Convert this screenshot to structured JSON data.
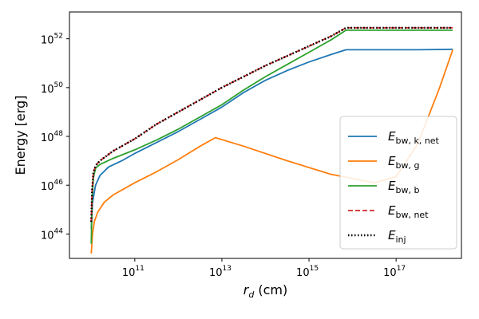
{
  "chart_data": {
    "type": "line",
    "xscale": "log",
    "yscale": "log",
    "xlabel": "r_d (cm)",
    "xlabel_main": "r",
    "xlabel_sub": "d",
    "xlabel_unit": " (cm)",
    "ylabel": "Energy [erg]",
    "xlim_exp": [
      9.5,
      18.5
    ],
    "ylim_exp": [
      43.0,
      53.1
    ],
    "xticks": [
      {
        "value": 11,
        "label_base": "10",
        "label_exp": "11"
      },
      {
        "value": 13,
        "label_base": "10",
        "label_exp": "13"
      },
      {
        "value": 15,
        "label_base": "10",
        "label_exp": "15"
      },
      {
        "value": 17,
        "label_base": "10",
        "label_exp": "17"
      }
    ],
    "yticks": [
      {
        "value": 44,
        "label_base": "10",
        "label_exp": "44"
      },
      {
        "value": 46,
        "label_base": "10",
        "label_exp": "46"
      },
      {
        "value": 48,
        "label_base": "10",
        "label_exp": "48"
      },
      {
        "value": 50,
        "label_base": "10",
        "label_exp": "50"
      },
      {
        "value": 52,
        "label_base": "10",
        "label_exp": "52"
      }
    ],
    "legend_position": "lower-right",
    "series": [
      {
        "name": "E_bw,k,net",
        "label_main": "E",
        "label_sub": "bw, k, net",
        "color": "#1f77b4",
        "style": "solid",
        "log_x": [
          10.0,
          10.03,
          10.1,
          10.2,
          10.4,
          10.7,
          11.0,
          11.5,
          12.0,
          12.5,
          13.0,
          13.5,
          14.0,
          14.5,
          15.0,
          15.5,
          15.85,
          16.5,
          17.5,
          18.3
        ],
        "log_y": [
          44.2,
          45.3,
          46.0,
          46.4,
          46.75,
          47.0,
          47.3,
          47.75,
          48.2,
          48.7,
          49.2,
          49.8,
          50.3,
          50.7,
          51.05,
          51.35,
          51.55,
          51.55,
          51.55,
          51.57
        ]
      },
      {
        "name": "E_bw,g",
        "label_main": "E",
        "label_sub": "bw, g",
        "color": "#ff7f0e",
        "style": "solid",
        "log_x": [
          10.0,
          10.03,
          10.07,
          10.15,
          10.3,
          10.5,
          10.8,
          11.0,
          11.5,
          12.0,
          12.5,
          12.85,
          13.5,
          14.5,
          15.5,
          16.5,
          17.0,
          17.5,
          18.0,
          18.3
        ],
        "log_y": [
          43.2,
          44.0,
          44.5,
          44.9,
          45.3,
          45.6,
          45.9,
          46.1,
          46.55,
          47.05,
          47.6,
          47.95,
          47.6,
          47.0,
          46.45,
          46.1,
          46.35,
          47.7,
          50.0,
          51.55
        ]
      },
      {
        "name": "E_bw,b",
        "label_main": "E",
        "label_sub": "bw, b",
        "color": "#2ca02c",
        "style": "solid",
        "log_x": [
          10.0,
          10.02,
          10.05,
          10.1,
          10.2,
          10.5,
          11.0,
          11.5,
          12.0,
          12.5,
          13.0,
          13.5,
          14.0,
          14.5,
          15.0,
          15.5,
          15.85,
          16.5,
          17.5,
          18.3
        ],
        "log_y": [
          43.6,
          45.5,
          46.3,
          46.7,
          46.85,
          47.1,
          47.45,
          47.85,
          48.3,
          48.8,
          49.3,
          49.9,
          50.45,
          50.95,
          51.45,
          51.95,
          52.35,
          52.35,
          52.35,
          52.35
        ]
      },
      {
        "name": "E_bw,net",
        "label_main": "E",
        "label_sub": "bw, net",
        "color": "#d62728",
        "style": "dashed",
        "log_x": [
          10.0,
          10.02,
          10.05,
          10.1,
          10.2,
          10.5,
          11.0,
          11.5,
          12.0,
          12.5,
          13.0,
          13.5,
          14.0,
          14.5,
          15.0,
          15.5,
          15.85,
          16.5,
          17.5,
          18.3
        ],
        "log_y": [
          44.5,
          45.8,
          46.5,
          46.8,
          47.0,
          47.4,
          47.9,
          48.5,
          49.0,
          49.5,
          50.0,
          50.45,
          50.9,
          51.3,
          51.7,
          52.1,
          52.45,
          52.45,
          52.45,
          52.45
        ]
      },
      {
        "name": "E_inj",
        "label_main": "E",
        "label_sub": "inj",
        "color": "#000000",
        "style": "dotted",
        "log_x": [
          10.0,
          10.02,
          10.05,
          10.1,
          10.2,
          10.5,
          11.0,
          11.5,
          12.0,
          12.5,
          13.0,
          13.5,
          14.0,
          14.5,
          15.0,
          15.5,
          15.85,
          16.5,
          17.5,
          18.3
        ],
        "log_y": [
          44.5,
          45.8,
          46.5,
          46.8,
          47.0,
          47.4,
          47.9,
          48.5,
          49.0,
          49.5,
          50.0,
          50.45,
          50.9,
          51.3,
          51.7,
          52.1,
          52.45,
          52.45,
          52.45,
          52.45
        ]
      }
    ]
  }
}
